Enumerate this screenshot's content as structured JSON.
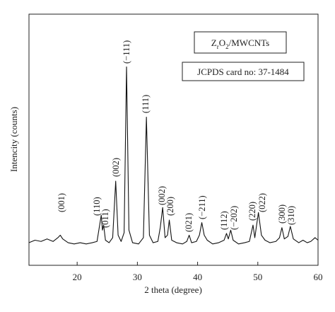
{
  "chart_data": {
    "type": "line",
    "xlabel": "2 theta (degree)",
    "ylabel": "Intencity (counts)",
    "xlim": [
      12,
      60
    ],
    "ylim": [
      0,
      100
    ],
    "xticks": [
      20,
      30,
      40,
      50,
      60
    ],
    "color": "#111111",
    "x": [
      12,
      13,
      14,
      15,
      16,
      16.8,
      17.2,
      17.6,
      18.5,
      19.5,
      20.5,
      21.5,
      22.5,
      23.3,
      23.8,
      24.0,
      24.2,
      24.4,
      24.7,
      25.3,
      25.9,
      26.4,
      26.8,
      27.3,
      27.8,
      28.2,
      28.6,
      29.2,
      30.2,
      31.0,
      31.5,
      32.0,
      32.6,
      33.4,
      33.8,
      34.2,
      34.6,
      35.0,
      35.3,
      35.7,
      36.5,
      37.5,
      38.2,
      38.6,
      39.0,
      39.8,
      40.3,
      40.7,
      41.1,
      41.6,
      42.5,
      43.5,
      44.4,
      44.8,
      45.1,
      45.5,
      45.9,
      46.8,
      47.8,
      48.6,
      49.2,
      49.5,
      50.1,
      50.6,
      51.2,
      52.0,
      53.0,
      53.6,
      54.0,
      54.4,
      55.0,
      55.4,
      55.9,
      56.8,
      57.5,
      58.2,
      58.8,
      59.5,
      60
    ],
    "values": [
      9,
      10,
      9.5,
      10.5,
      9.5,
      11,
      12,
      10.5,
      9,
      8.5,
      9,
      8.5,
      9,
      9.5,
      17,
      20,
      14,
      16,
      10,
      9,
      11,
      33.5,
      12,
      9.5,
      13,
      79,
      14,
      9,
      8.5,
      11,
      59,
      12,
      9,
      9.5,
      15,
      23,
      11,
      12,
      18,
      10,
      9,
      8.5,
      9.5,
      12,
      9,
      9.5,
      12,
      17,
      12,
      10,
      8.5,
      9,
      10,
      12.7,
      10.5,
      14,
      10,
      8.5,
      9,
      9.5,
      16,
      11,
      21,
      12,
      10,
      9,
      9.5,
      11,
      15,
      10.5,
      11.5,
      15.5,
      10.5,
      9,
      10,
      9,
      9.5,
      11,
      10
    ],
    "annotations": [
      "(001)",
      "(110)",
      "(011)",
      "(002)",
      "(−111)",
      "(111)",
      "(002)",
      "(200)",
      "(021)",
      "(−211)",
      "(112)",
      "(−202)",
      "(220)",
      "(022)",
      "(300)",
      "(310)"
    ],
    "legend_boxes": [
      [
        "Z",
        "r",
        "O",
        "2",
        "/MWCNTs"
      ],
      [
        "JCPDS card no: 37-1484"
      ]
    ]
  }
}
